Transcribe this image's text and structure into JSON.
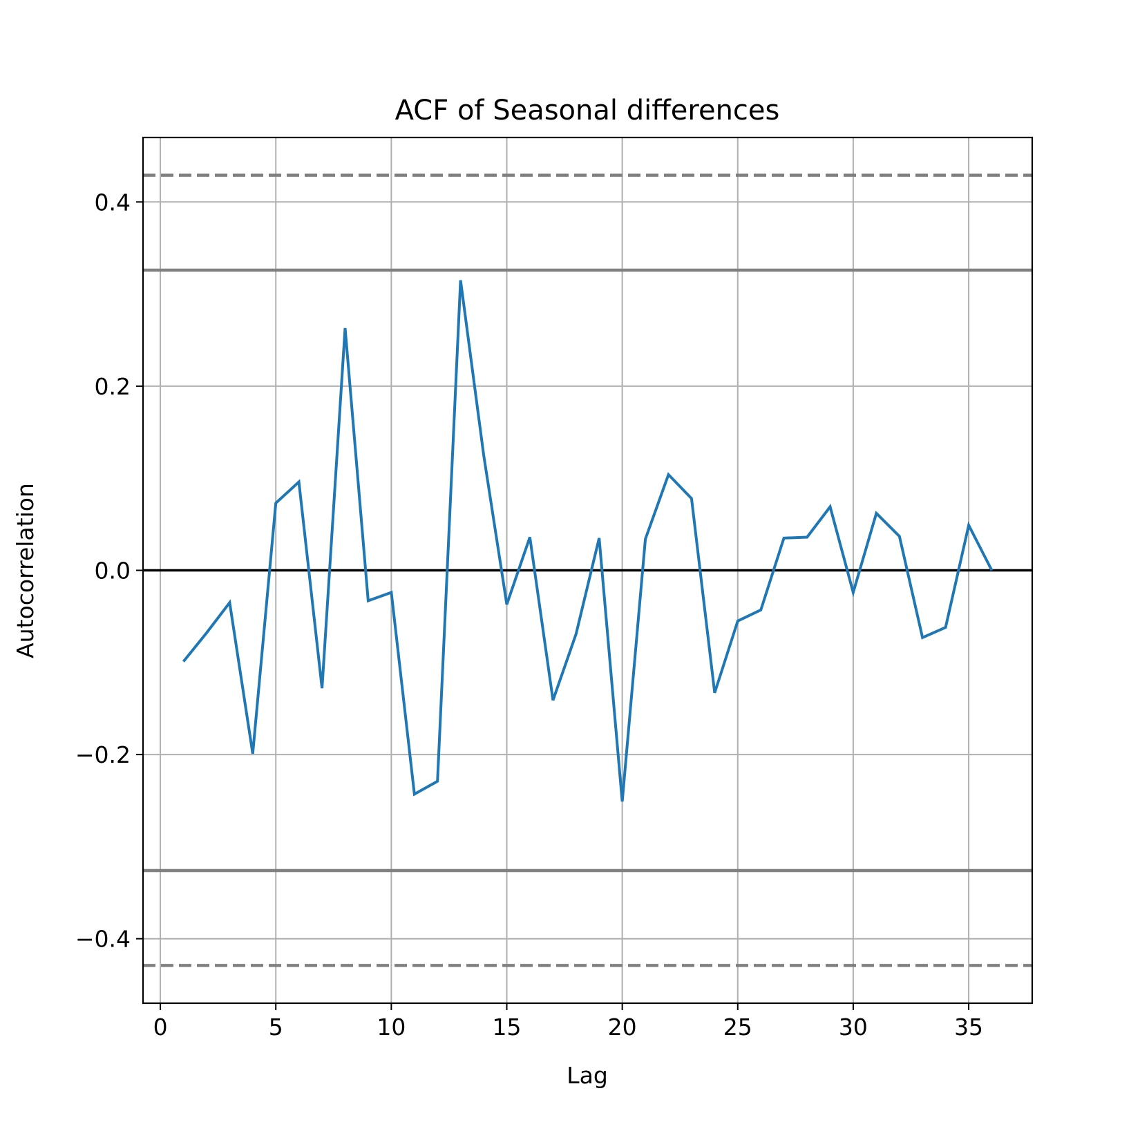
{
  "chart_data": {
    "type": "line",
    "title": "ACF of Seasonal differences",
    "xlabel": "Lag",
    "ylabel": "Autocorrelation",
    "xlim": [
      -0.75,
      37.75
    ],
    "ylim": [
      -0.47,
      0.47
    ],
    "grid": true,
    "xticks": [
      0,
      5,
      10,
      15,
      20,
      25,
      30,
      35
    ],
    "xtick_labels": [
      "0",
      "5",
      "10",
      "15",
      "20",
      "25",
      "30",
      "35"
    ],
    "yticks": [
      -0.4,
      -0.2,
      0.0,
      0.2,
      0.4
    ],
    "ytick_labels": [
      "−0.4",
      "−0.2",
      "0.0",
      "0.2",
      "0.4"
    ],
    "reference_lines": [
      {
        "y": 0.0,
        "style": "solid",
        "color": "#000000"
      },
      {
        "y": 0.326,
        "style": "solid",
        "color": "#808080"
      },
      {
        "y": -0.326,
        "style": "solid",
        "color": "#808080"
      },
      {
        "y": 0.429,
        "style": "dashed",
        "color": "#808080"
      },
      {
        "y": -0.429,
        "style": "dashed",
        "color": "#808080"
      }
    ],
    "series": [
      {
        "color": "#1f77b4",
        "x": [
          1,
          2,
          3,
          4,
          5,
          6,
          7,
          8,
          9,
          10,
          11,
          12,
          13,
          14,
          15,
          16,
          17,
          18,
          19,
          20,
          21,
          22,
          23,
          24,
          25,
          26,
          27,
          28,
          29,
          30,
          31,
          32,
          33,
          34,
          35,
          36
        ],
        "values": [
          -0.099,
          -0.068,
          -0.035,
          -0.199,
          0.073,
          0.096,
          -0.128,
          0.263,
          -0.033,
          -0.024,
          -0.243,
          -0.229,
          0.315,
          0.125,
          -0.037,
          0.036,
          -0.141,
          -0.069,
          0.035,
          -0.251,
          0.034,
          0.104,
          0.078,
          -0.133,
          -0.055,
          -0.043,
          0.035,
          0.036,
          0.069,
          -0.024,
          0.062,
          0.037,
          -0.073,
          -0.062,
          0.049,
          0.0
        ]
      }
    ]
  }
}
